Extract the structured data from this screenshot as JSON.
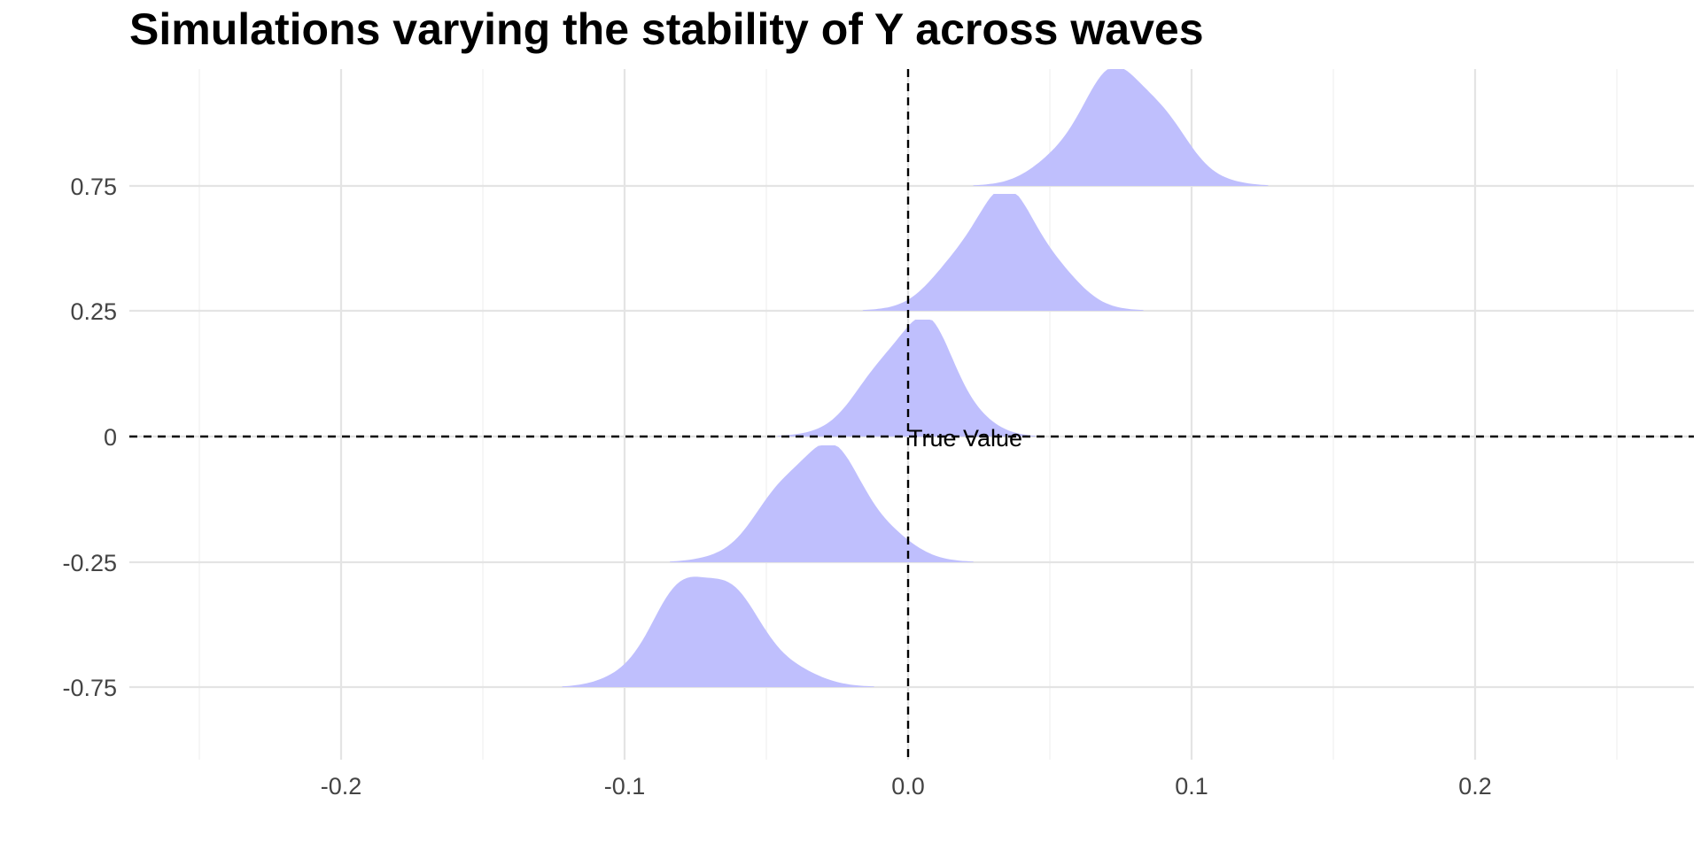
{
  "chart_data": {
    "type": "ridgeline",
    "title": "Simulations varying the stability of Y across waves",
    "xlabel": "",
    "ylabel": "",
    "xlim": [
      -0.25,
      0.27
    ],
    "ylim": [
      -1.0,
      1.15
    ],
    "x_ticks": [
      -0.2,
      -0.1,
      0.0,
      0.1,
      0.2
    ],
    "x_tick_labels": [
      "-0.2",
      "-0.1",
      "0.0",
      "0.1",
      "0.2"
    ],
    "y_ticks": [
      -0.75,
      -0.25,
      0,
      0.25,
      0.75
    ],
    "y_tick_labels": [
      "-0.75",
      "-0.25",
      "0",
      "0.25",
      "0.75"
    ],
    "grid": true,
    "fill_color": "#bfbffd",
    "reference_lines": [
      {
        "orientation": "vertical",
        "value": 0.0,
        "style": "dashed"
      },
      {
        "orientation": "horizontal",
        "value": 0,
        "style": "dashed"
      }
    ],
    "annotations": [
      {
        "text": "True Value",
        "x": 0.0,
        "y": 0
      }
    ],
    "series": [
      {
        "y": -0.75,
        "mode": -0.073,
        "range": [
          -0.122,
          -0.012
        ]
      },
      {
        "y": -0.25,
        "mode": -0.031,
        "range": [
          -0.084,
          0.023
        ]
      },
      {
        "y": 0,
        "mode": 0.004,
        "range": [
          -0.046,
          0.045
        ]
      },
      {
        "y": 0.25,
        "mode": 0.034,
        "range": [
          -0.016,
          0.083
        ]
      },
      {
        "y": 0.75,
        "mode": 0.076,
        "range": [
          0.023,
          0.127
        ]
      }
    ]
  }
}
